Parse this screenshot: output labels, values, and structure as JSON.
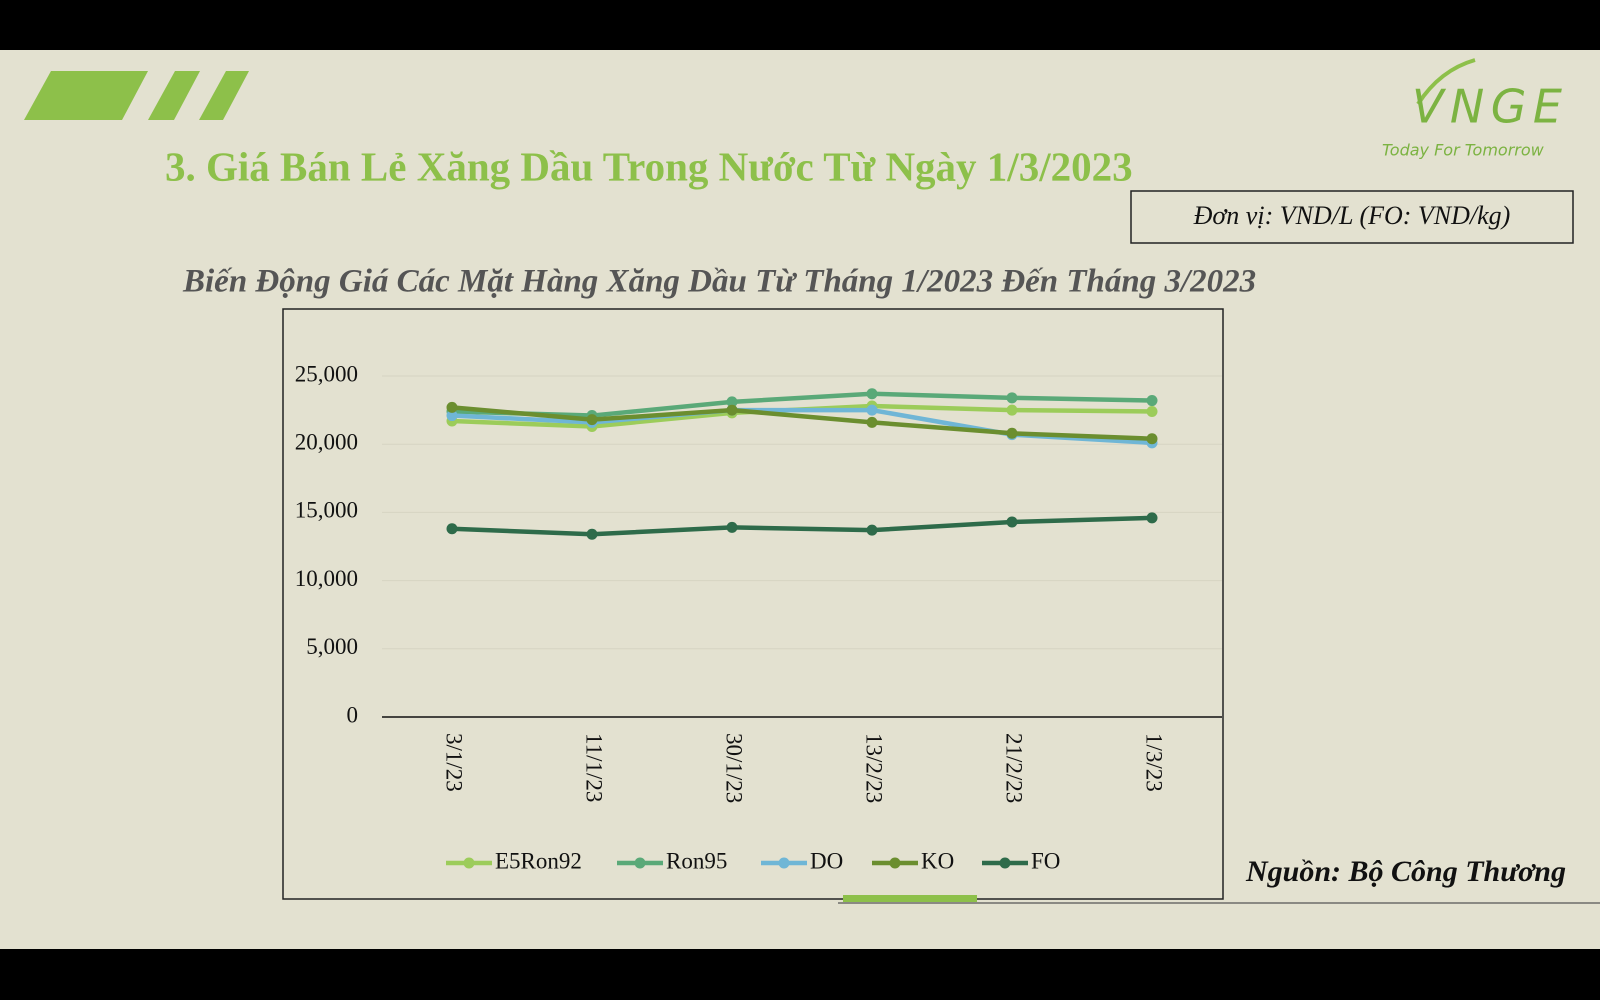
{
  "header": {
    "title": "3. Giá Bán Lẻ Xăng Dầu Trong Nước Từ Ngày 1/3/2023",
    "unit": "Đơn vị: VND/L (FO: VND/kg)",
    "logo": "VNGE",
    "slogan": "Today For Tomorrow"
  },
  "source": "Nguồn: Bộ Công Thương",
  "chart_data": {
    "type": "line",
    "title": "Biến Động Giá Các Mặt Hàng Xăng Dầu Từ Tháng 1/2023 Đến Tháng 3/2023",
    "categories": [
      "3/1/23",
      "11/1/23",
      "30/1/23",
      "13/2/23",
      "21/2/23",
      "1/3/23"
    ],
    "series": [
      {
        "name": "E5Ron92",
        "color": "#9ccc5a",
        "values": [
          21700,
          21300,
          22300,
          22800,
          22500,
          22400
        ]
      },
      {
        "name": "Ron95",
        "color": "#5aa978",
        "values": [
          22400,
          22100,
          23100,
          23700,
          23400,
          23200
        ]
      },
      {
        "name": "DO",
        "color": "#6fb6d6",
        "values": [
          22100,
          21600,
          22500,
          22500,
          20700,
          20100
        ]
      },
      {
        "name": "KO",
        "color": "#6b8e2f",
        "values": [
          22700,
          21800,
          22500,
          21600,
          20800,
          20400
        ]
      },
      {
        "name": "FO",
        "color": "#2e6b4a",
        "values": [
          13800,
          13400,
          13900,
          13700,
          14300,
          14600
        ]
      }
    ],
    "ylim": [
      0,
      25000
    ],
    "yticks": [
      0,
      {
        "value": 5000,
        "label": "5,000"
      },
      {
        "value": 10000,
        "label": "10,000"
      },
      {
        "value": 15000,
        "label": "15,000"
      },
      {
        "value": 20000,
        "label": "20,000"
      },
      {
        "value": 25000,
        "label": "25,000"
      }
    ],
    "grid": true,
    "legend": "bottom"
  }
}
